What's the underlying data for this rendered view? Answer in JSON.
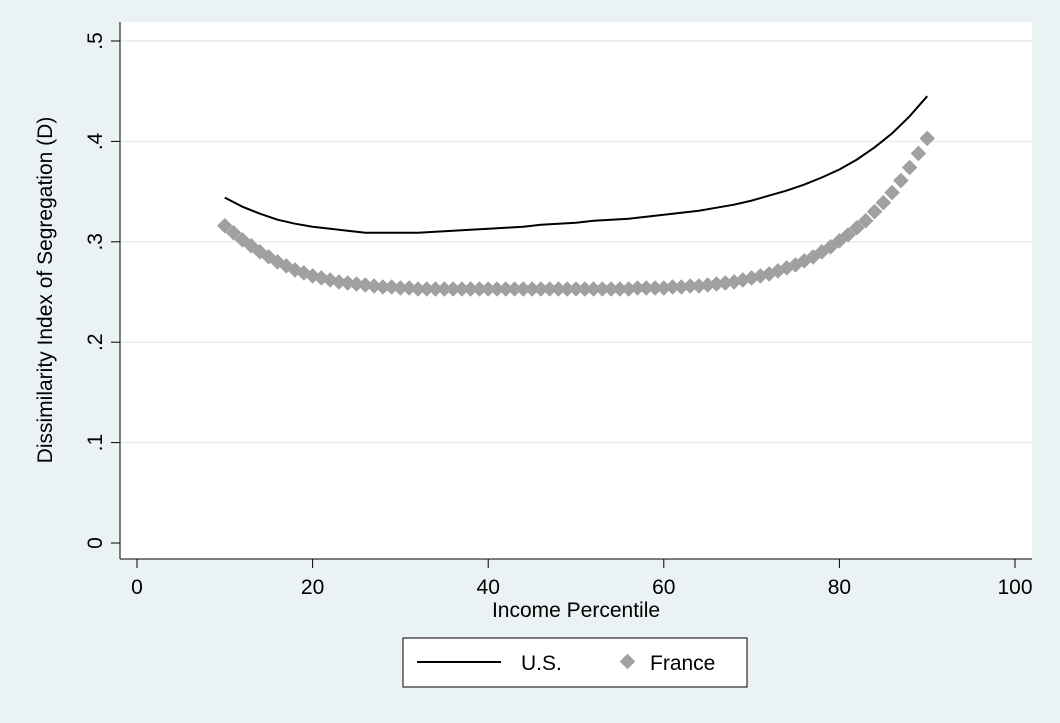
{
  "chart_data": {
    "type": "line",
    "xlabel": "Income Percentile",
    "ylabel": "Dissimilarity Index of Segregation (D)",
    "xlim": [
      0,
      100
    ],
    "ylim": [
      0,
      0.5
    ],
    "x_ticks": [
      0,
      20,
      40,
      60,
      80,
      100
    ],
    "x_tick_labels": [
      "0",
      "20",
      "40",
      "60",
      "80",
      "100"
    ],
    "y_ticks": [
      0,
      0.1,
      0.2,
      0.3,
      0.4,
      0.5
    ],
    "y_tick_labels": [
      "0",
      ".1",
      ".2",
      ".3",
      ".4",
      ".5"
    ],
    "grid": "horizontal",
    "legend_position": "bottom",
    "series": [
      {
        "name": "U.S.",
        "style": "line",
        "color": "#000000",
        "x": [
          10,
          12,
          14,
          16,
          18,
          20,
          22,
          24,
          26,
          28,
          30,
          32,
          34,
          36,
          38,
          40,
          42,
          44,
          46,
          48,
          50,
          52,
          54,
          56,
          58,
          60,
          62,
          64,
          66,
          68,
          70,
          72,
          74,
          76,
          78,
          80,
          82,
          84,
          86,
          88,
          90
        ],
        "y": [
          0.344,
          0.335,
          0.328,
          0.322,
          0.318,
          0.315,
          0.313,
          0.311,
          0.309,
          0.309,
          0.309,
          0.309,
          0.31,
          0.311,
          0.312,
          0.313,
          0.314,
          0.315,
          0.317,
          0.318,
          0.319,
          0.321,
          0.322,
          0.323,
          0.325,
          0.327,
          0.329,
          0.331,
          0.334,
          0.337,
          0.341,
          0.346,
          0.351,
          0.357,
          0.364,
          0.372,
          0.382,
          0.394,
          0.408,
          0.425,
          0.445
        ]
      },
      {
        "name": "France",
        "style": "markers",
        "color": "#a0a0a0",
        "x": [
          10,
          11,
          12,
          13,
          14,
          15,
          16,
          17,
          18,
          19,
          20,
          21,
          22,
          23,
          24,
          25,
          26,
          27,
          28,
          29,
          30,
          31,
          32,
          33,
          34,
          35,
          36,
          37,
          38,
          39,
          40,
          41,
          42,
          43,
          44,
          45,
          46,
          47,
          48,
          49,
          50,
          51,
          52,
          53,
          54,
          55,
          56,
          57,
          58,
          59,
          60,
          61,
          62,
          63,
          64,
          65,
          66,
          67,
          68,
          69,
          70,
          71,
          72,
          73,
          74,
          75,
          76,
          77,
          78,
          79,
          80,
          81,
          82,
          83,
          84,
          85,
          86,
          87,
          88,
          89,
          90
        ],
        "y": [
          0.316,
          0.309,
          0.302,
          0.296,
          0.29,
          0.285,
          0.28,
          0.276,
          0.272,
          0.269,
          0.266,
          0.264,
          0.262,
          0.26,
          0.259,
          0.258,
          0.257,
          0.256,
          0.255,
          0.255,
          0.254,
          0.254,
          0.253,
          0.253,
          0.253,
          0.253,
          0.253,
          0.253,
          0.253,
          0.253,
          0.253,
          0.253,
          0.253,
          0.253,
          0.253,
          0.253,
          0.253,
          0.253,
          0.253,
          0.253,
          0.253,
          0.253,
          0.253,
          0.253,
          0.253,
          0.253,
          0.253,
          0.254,
          0.254,
          0.254,
          0.254,
          0.255,
          0.255,
          0.256,
          0.256,
          0.257,
          0.258,
          0.259,
          0.26,
          0.262,
          0.264,
          0.266,
          0.268,
          0.271,
          0.274,
          0.277,
          0.281,
          0.285,
          0.29,
          0.295,
          0.301,
          0.307,
          0.314,
          0.321,
          0.33,
          0.339,
          0.349,
          0.361,
          0.374,
          0.388,
          0.403
        ]
      }
    ]
  }
}
